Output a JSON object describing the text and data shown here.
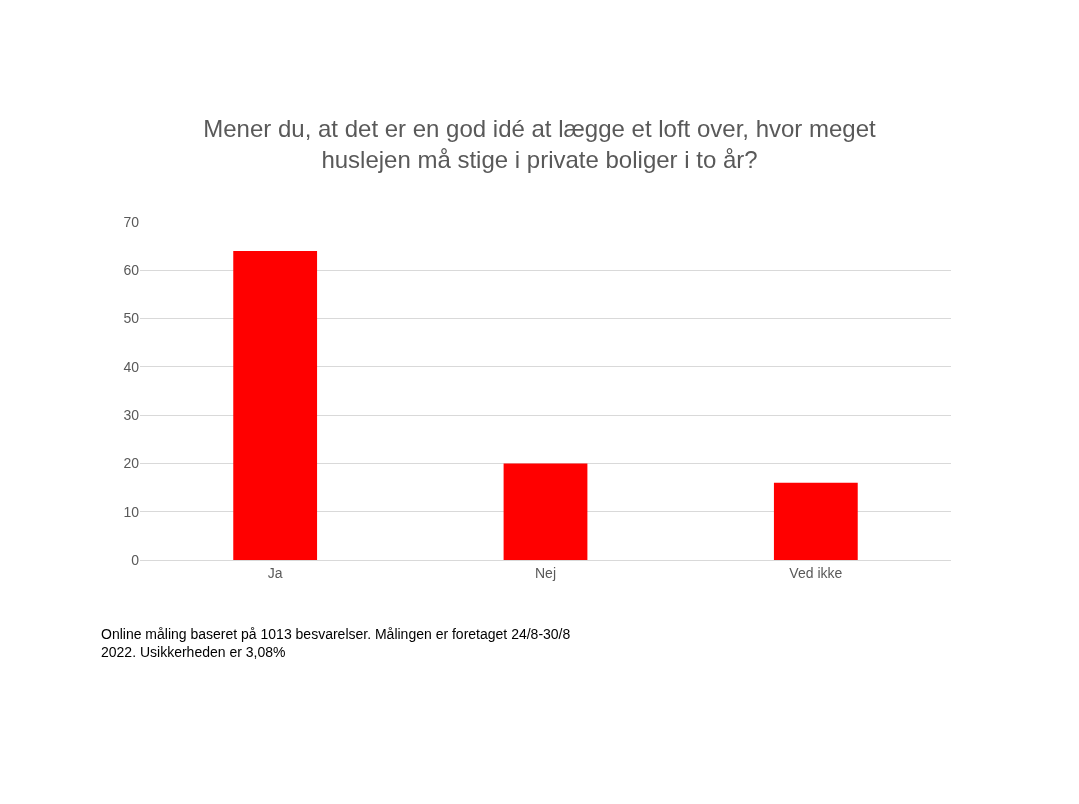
{
  "chart_data": {
    "type": "bar",
    "title": "Mener du, at det er en god idé at lægge et loft over, hvor meget\nhuslejen må stige i private boliger i to år?",
    "categories": [
      "Ja",
      "Nej",
      "Ved ikke"
    ],
    "values": [
      64,
      20,
      16
    ],
    "color": "#ff0000",
    "ylim": [
      0,
      70
    ],
    "yticks": [
      0,
      10,
      20,
      30,
      40,
      50,
      60,
      70
    ],
    "grid": "y",
    "annotations": [
      "Online måling baseret på 1013 besvarelser. Målingen er foretaget 24/8-30/8\n2022. Usikkerheden er 3,08%"
    ]
  }
}
